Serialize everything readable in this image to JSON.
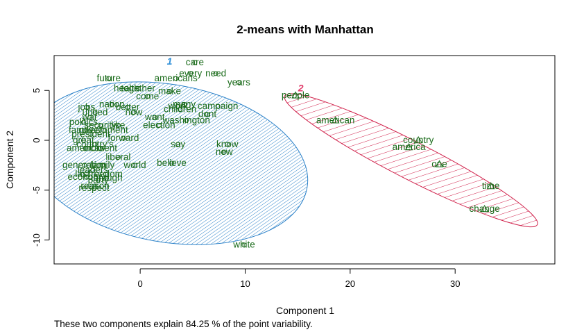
{
  "chart_data": {
    "type": "scatter",
    "title": "2-means with Manhattan",
    "xlabel": "Component 1",
    "ylabel": "Component 2",
    "xlim": [
      -8.2,
      39.5
    ],
    "ylim": [
      -12.4,
      8.5
    ],
    "x_ticks": [
      0,
      10,
      20,
      30
    ],
    "y_ticks": [
      -10,
      -5,
      0,
      5
    ],
    "grid": false,
    "legend": "none",
    "colors": {
      "label": "#1a6b1a",
      "cluster1": "#2c82c9",
      "cluster2": "#d0204a",
      "cluster1_label": "#3090d8",
      "cluster2_label": "#e03c6a"
    },
    "clusters": [
      {
        "id": "1",
        "center": [
          2.6,
          -2.3
        ],
        "rx": 13.5,
        "ry": 7.9,
        "angle_deg": -10,
        "label_at": [
          2.8,
          7.6
        ]
      },
      {
        "id": "2",
        "center": [
          25.8,
          -2.0
        ],
        "rx": 13.5,
        "ry": 1.9,
        "angle_deg": -27,
        "label_at": [
          15.3,
          4.9
        ]
      }
    ],
    "points": [
      {
        "label": "care",
        "x": 5.2,
        "y": 7.8,
        "cluster": 1
      },
      {
        "label": "every",
        "x": 4.8,
        "y": 6.7,
        "cluster": 1
      },
      {
        "label": "need",
        "x": 7.2,
        "y": 6.7,
        "cluster": 1
      },
      {
        "label": "future",
        "x": -3.0,
        "y": 6.2,
        "cluster": 1
      },
      {
        "label": "americans",
        "x": 3.4,
        "y": 6.2,
        "cluster": 1
      },
      {
        "label": "years",
        "x": 9.4,
        "y": 5.8,
        "cluster": 1
      },
      {
        "label": "health",
        "x": -1.3,
        "y": 5.2,
        "cluster": 1
      },
      {
        "label": "together",
        "x": -0.2,
        "y": 5.2,
        "cluster": 1
      },
      {
        "label": "make",
        "x": 2.8,
        "y": 4.9,
        "cluster": 1
      },
      {
        "label": "come",
        "x": 0.7,
        "y": 4.4,
        "cluster": 1
      },
      {
        "label": "nation",
        "x": -2.7,
        "y": 3.6,
        "cluster": 1
      },
      {
        "label": "many",
        "x": 4.2,
        "y": 3.6,
        "cluster": 1
      },
      {
        "label": "work",
        "x": 3.6,
        "y": 3.4,
        "cluster": 1
      },
      {
        "label": "campaign",
        "x": 7.4,
        "y": 3.4,
        "cluster": 1
      },
      {
        "label": "jobs",
        "x": -5.1,
        "y": 3.3,
        "cluster": 1
      },
      {
        "label": "better",
        "x": -1.2,
        "y": 3.3,
        "cluster": 1
      },
      {
        "label": "children",
        "x": 3.8,
        "y": 3.1,
        "cluster": 1
      },
      {
        "label": "united",
        "x": -4.3,
        "y": 2.8,
        "cluster": 1
      },
      {
        "label": "now",
        "x": -0.6,
        "y": 2.8,
        "cluster": 1
      },
      {
        "label": "dont",
        "x": 6.4,
        "y": 2.6,
        "cluster": 1
      },
      {
        "label": "want",
        "x": 1.4,
        "y": 2.3,
        "cluster": 1
      },
      {
        "label": "war",
        "x": -4.8,
        "y": 2.3,
        "cluster": 1
      },
      {
        "label": "washington",
        "x": 4.4,
        "y": 2.0,
        "cluster": 1
      },
      {
        "label": "politics",
        "x": -5.4,
        "y": 1.8,
        "cluster": 1
      },
      {
        "label": "like",
        "x": -2.1,
        "y": 1.5,
        "cluster": 1
      },
      {
        "label": "election",
        "x": 1.8,
        "y": 1.5,
        "cluster": 1
      },
      {
        "label": "security",
        "x": -3.8,
        "y": 1.5,
        "cluster": 1
      },
      {
        "label": "families",
        "x": -5.3,
        "y": 1.0,
        "cluster": 1
      },
      {
        "label": "government",
        "x": -3.5,
        "y": 1.0,
        "cluster": 1
      },
      {
        "label": "president",
        "x": -4.7,
        "y": 0.6,
        "cluster": 1
      },
      {
        "label": "forward",
        "x": -1.6,
        "y": 0.2,
        "cluster": 1
      },
      {
        "label": "great",
        "x": -5.4,
        "y": 0.0,
        "cluster": 1
      },
      {
        "label": "say",
        "x": 3.6,
        "y": -0.4,
        "cluster": 1
      },
      {
        "label": "know",
        "x": 8.3,
        "y": -0.4,
        "cluster": 1
      },
      {
        "label": "country's",
        "x": -4.3,
        "y": -0.4,
        "cluster": 1
      },
      {
        "label": "americas",
        "x": -5.2,
        "y": -0.8,
        "cluster": 1
      },
      {
        "label": "moment",
        "x": -3.8,
        "y": -0.8,
        "cluster": 1
      },
      {
        "label": "new",
        "x": 8.0,
        "y": -1.2,
        "cluster": 1
      },
      {
        "label": "liberal",
        "x": -2.1,
        "y": -1.7,
        "cluster": 1
      },
      {
        "label": "believe",
        "x": 3.0,
        "y": -2.3,
        "cluster": 1
      },
      {
        "label": "generation",
        "x": -5.3,
        "y": -2.5,
        "cluster": 1
      },
      {
        "label": "world",
        "x": -0.5,
        "y": -2.5,
        "cluster": 1
      },
      {
        "label": "family",
        "x": -3.6,
        "y": -2.5,
        "cluster": 1
      },
      {
        "label": "leaders",
        "x": -4.5,
        "y": -3.0,
        "cluster": 1
      },
      {
        "label": "last",
        "x": -5.5,
        "y": -3.4,
        "cluster": 1
      },
      {
        "label": "freedom",
        "x": -3.3,
        "y": -3.4,
        "cluster": 1
      },
      {
        "label": "economy",
        "x": -5.1,
        "y": -3.7,
        "cluster": 1
      },
      {
        "label": "through",
        "x": -3.2,
        "y": -3.8,
        "cluster": 1
      },
      {
        "label": "party",
        "x": -4.0,
        "y": -4.0,
        "cluster": 1
      },
      {
        "label": "reason",
        "x": -4.3,
        "y": -4.6,
        "cluster": 1
      },
      {
        "label": "respect",
        "x": -4.4,
        "y": -4.8,
        "cluster": 1
      },
      {
        "label": "white",
        "x": 9.9,
        "y": -10.5,
        "cluster": 1
      },
      {
        "label": "people",
        "x": 14.8,
        "y": 4.5,
        "cluster": 2
      },
      {
        "label": "american",
        "x": 18.6,
        "y": 2.0,
        "cluster": 2
      },
      {
        "label": "country",
        "x": 26.5,
        "y": 0.0,
        "cluster": 2
      },
      {
        "label": "america",
        "x": 25.6,
        "y": -0.7,
        "cluster": 2
      },
      {
        "label": "one",
        "x": 28.5,
        "y": -2.4,
        "cluster": 2
      },
      {
        "label": "time",
        "x": 33.4,
        "y": -4.6,
        "cluster": 2
      },
      {
        "label": "change",
        "x": 32.8,
        "y": -6.9,
        "cluster": 2
      }
    ]
  },
  "caption": "These two components explain 84.25 % of the point variability."
}
